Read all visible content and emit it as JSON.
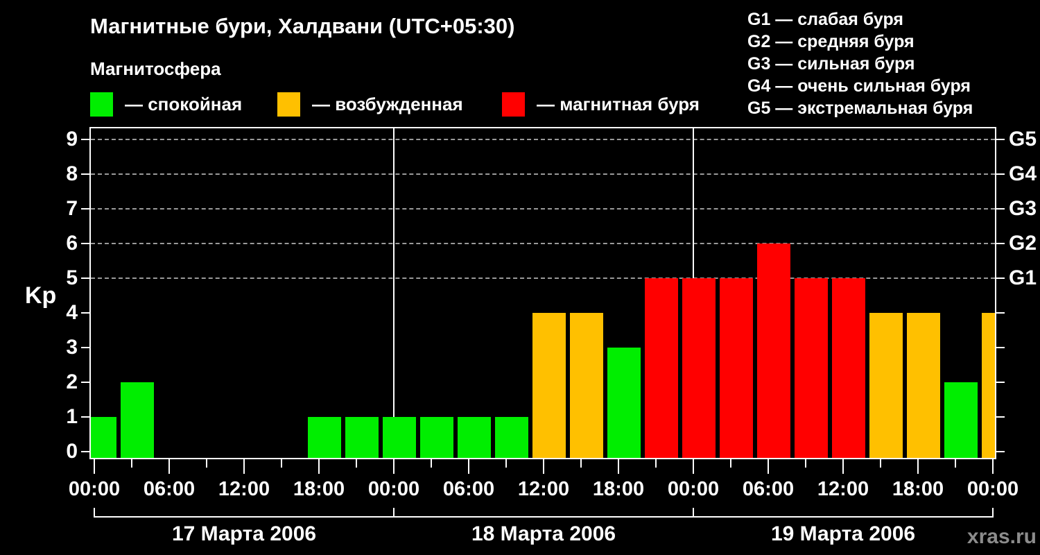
{
  "title": "Магнитные бури, Халдвани (UTC+05:30)",
  "legend": {
    "heading": "Магнитосфера",
    "items": [
      {
        "name": "quiet",
        "label": "— спокойная",
        "color": "#00EE00"
      },
      {
        "name": "excited",
        "label": "— возбужденная",
        "color": "#FFC000"
      },
      {
        "name": "storm",
        "label": "— магнитная буря",
        "color": "#FF0000"
      }
    ]
  },
  "storm_scale_legend": [
    "G1 — слабая буря",
    "G2 — средняя буря",
    "G3 — сильная буря",
    "G4 — очень сильная буря",
    "G5 — экстремальная буря"
  ],
  "axes": {
    "y_label": "Kp",
    "y_ticks": [
      "0",
      "1",
      "2",
      "3",
      "4",
      "5",
      "6",
      "7",
      "8",
      "9"
    ],
    "x_tick_labels": [
      "00:00",
      "06:00",
      "12:00",
      "18:00",
      "00:00",
      "06:00",
      "12:00",
      "18:00",
      "00:00",
      "06:00",
      "12:00",
      "18:00",
      "00:00"
    ]
  },
  "watermark": "xras.ru",
  "chart_data": {
    "type": "bar",
    "title": "Магнитные бури, Халдвани (UTC+05:30)",
    "ylabel": "Kp",
    "ylim": [
      0,
      9
    ],
    "gridlines_kp": [
      5,
      6,
      7,
      8,
      9
    ],
    "interval_hours": 3,
    "days": [
      {
        "date": "17 Марта 2006",
        "kp": [
          1,
          2,
          0,
          0,
          0,
          0,
          1,
          1
        ]
      },
      {
        "date": "18 Марта 2006",
        "kp": [
          1,
          1,
          1,
          1,
          4,
          4,
          3,
          5
        ]
      },
      {
        "date": "19 Марта 2006",
        "kp": [
          5,
          5,
          6,
          5,
          5,
          4,
          4,
          2
        ]
      }
    ],
    "trailing_value_next_day": 4,
    "g_scale": [
      {
        "label": "G1",
        "kp": 5
      },
      {
        "label": "G2",
        "kp": 6
      },
      {
        "label": "G3",
        "kp": 7
      },
      {
        "label": "G4",
        "kp": 8
      },
      {
        "label": "G5",
        "kp": 9
      }
    ],
    "colors": {
      "quiet": "#00EE00",
      "excited": "#FFC000",
      "storm": "#FF0000"
    },
    "color_rule": "kp <= 3 quiet (green), kp = 4 excited (orange), kp >= 5 storm (red)",
    "grid": true,
    "legend_position": "top"
  }
}
